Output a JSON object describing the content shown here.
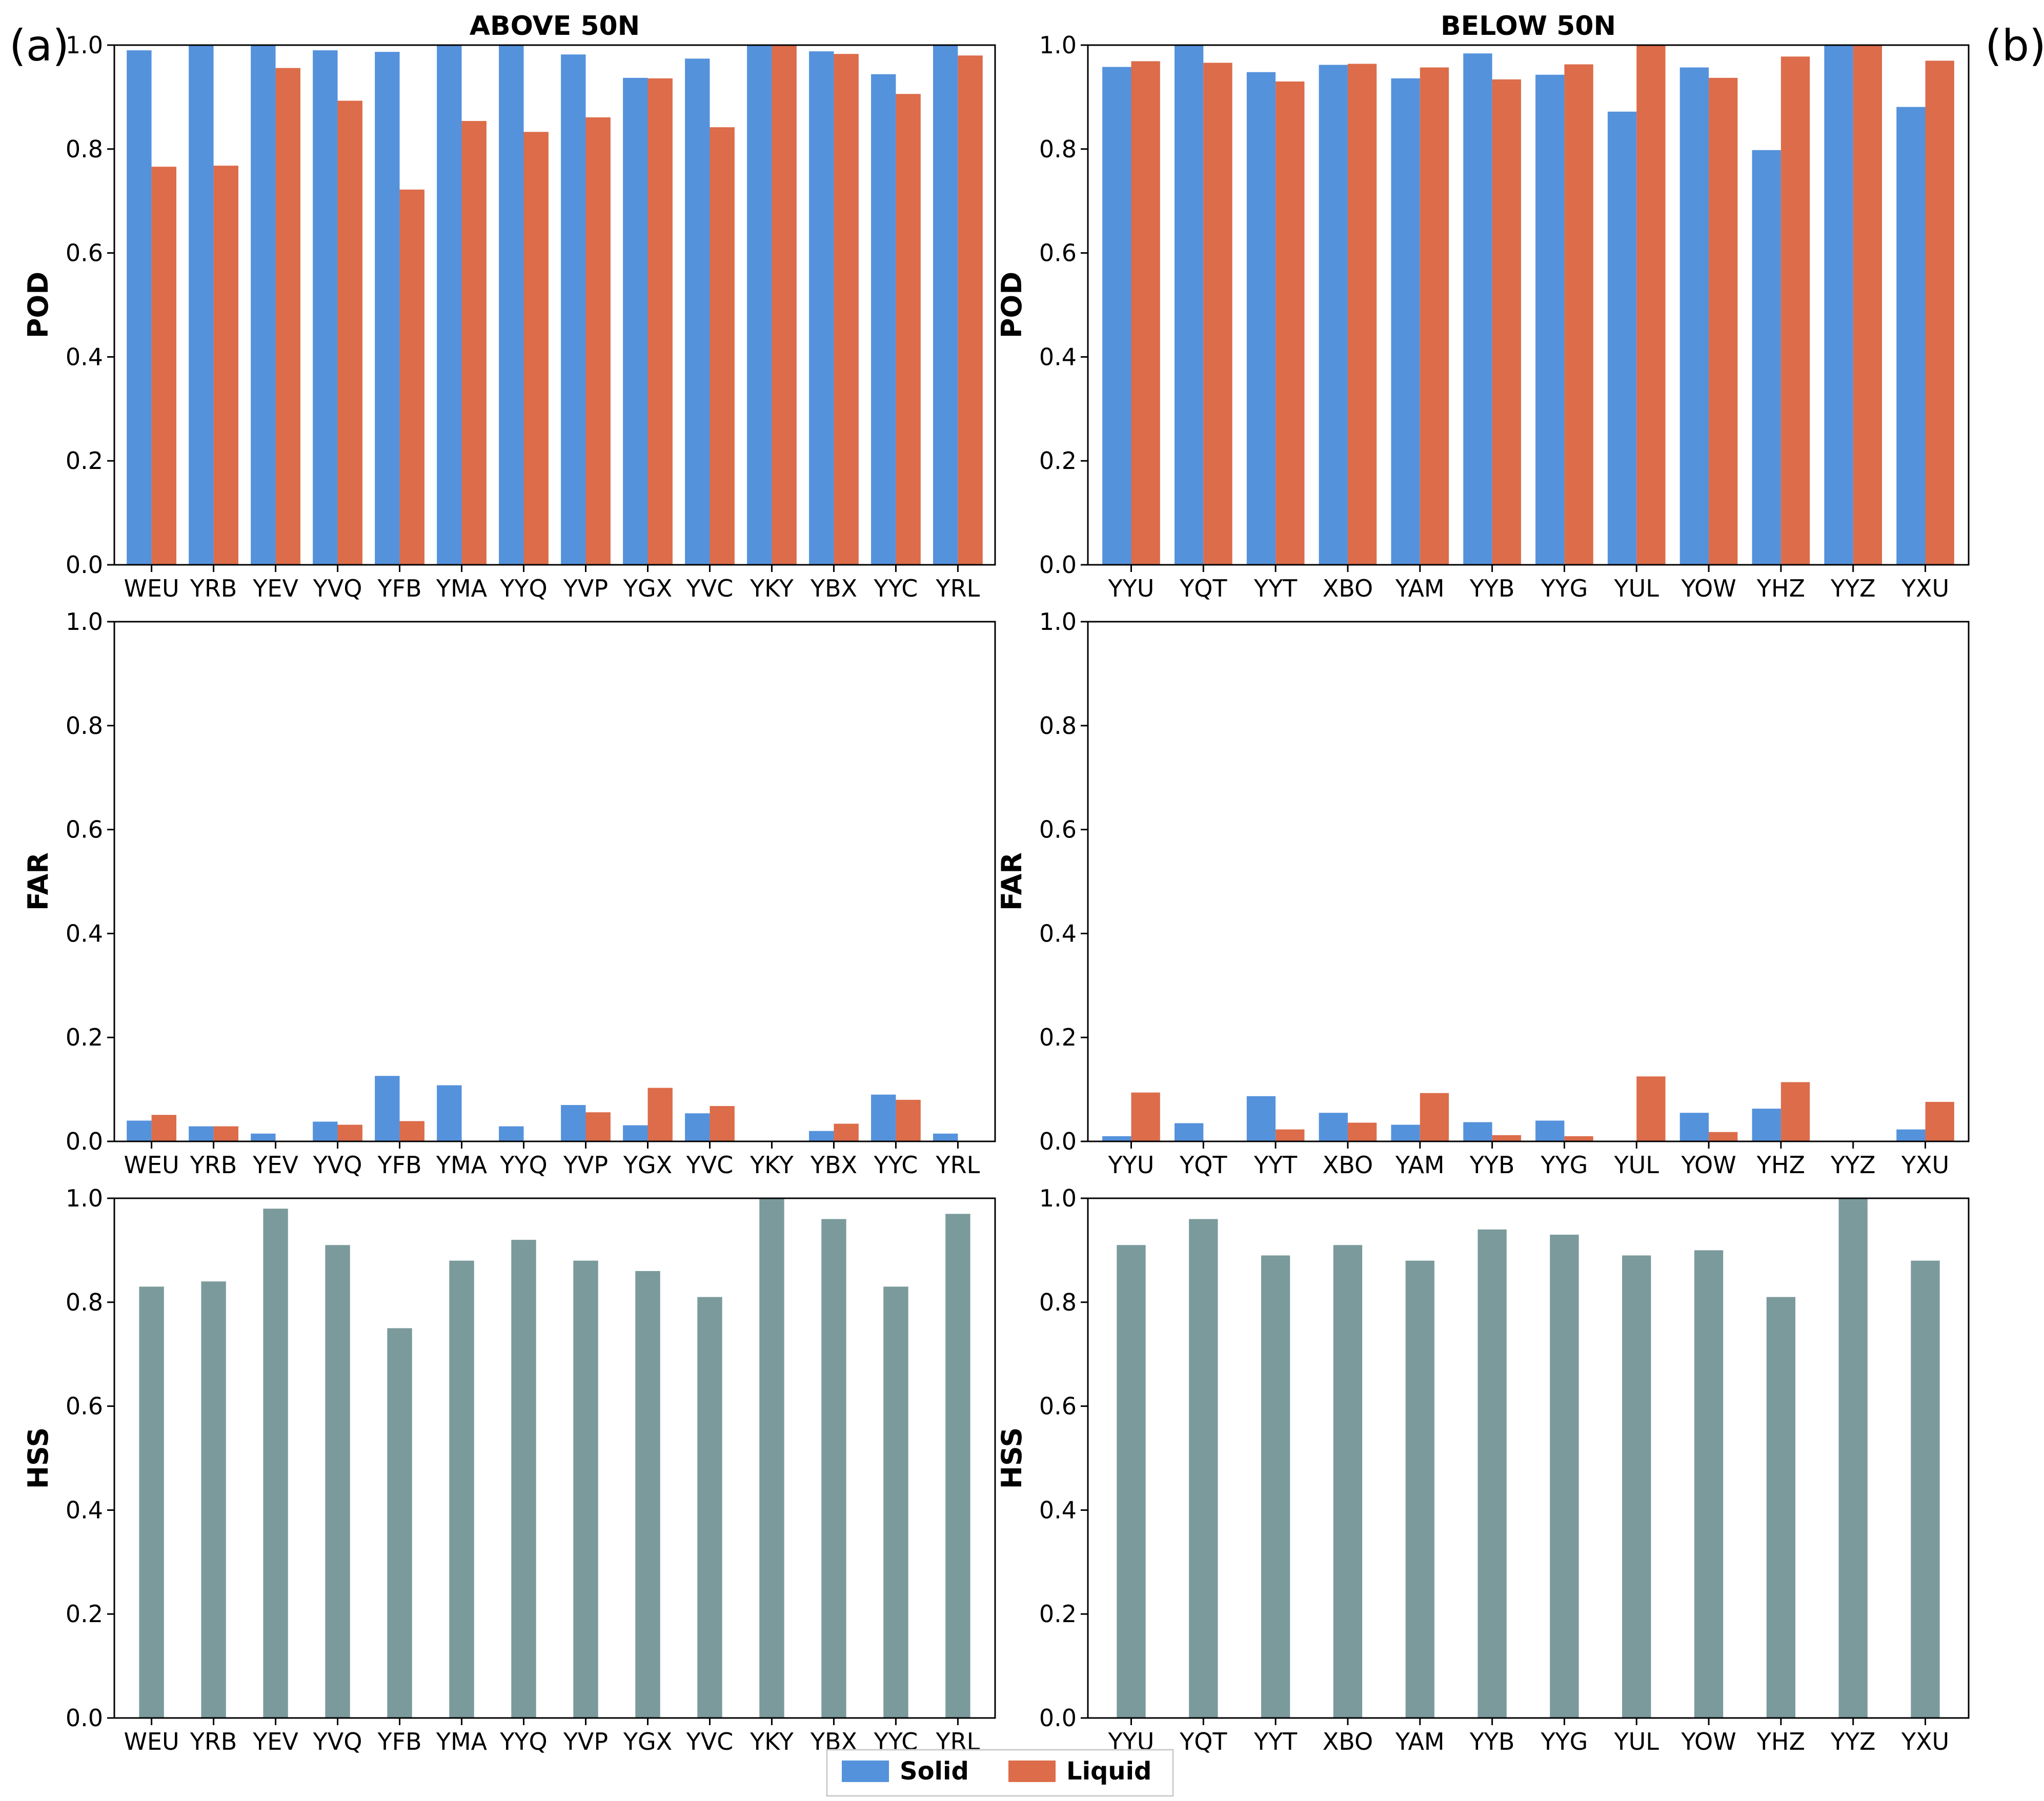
{
  "panel_labels": [
    "(a)",
    "(b)"
  ],
  "colors": {
    "solid": "#5592DC",
    "liquid": "#DC6C4A",
    "hss": "#7B9A9C"
  },
  "legend": {
    "solid_label": "Solid",
    "liquid_label": "Liquid"
  },
  "chart_data": [
    {
      "type": "bar",
      "id": "pod-above",
      "title": "ABOVE 50N",
      "xlabel": "",
      "ylabel": "POD",
      "ylim": [
        0,
        1
      ],
      "yticks": [
        "0.0",
        "0.2",
        "0.4",
        "0.6",
        "0.8",
        "1.0"
      ],
      "categories": [
        "WEU",
        "YRB",
        "YEV",
        "YVQ",
        "YFB",
        "YMA",
        "YYQ",
        "YVP",
        "YGX",
        "YVC",
        "YKY",
        "YBX",
        "YYC",
        "YRL"
      ],
      "series": [
        {
          "name": "Solid",
          "values": [
            0.99,
            1.0,
            1.0,
            0.99,
            0.987,
            1.0,
            1.0,
            0.982,
            0.937,
            0.974,
            1.0,
            0.988,
            0.944,
            1.0
          ]
        },
        {
          "name": "Liquid",
          "values": [
            0.766,
            0.768,
            0.956,
            0.893,
            0.722,
            0.854,
            0.833,
            0.861,
            0.936,
            0.842,
            1.0,
            0.983,
            0.906,
            0.98
          ]
        }
      ]
    },
    {
      "type": "bar",
      "id": "pod-below",
      "title": "BELOW 50N",
      "xlabel": "",
      "ylabel": "POD",
      "ylim": [
        0,
        1
      ],
      "yticks": [
        "0.0",
        "0.2",
        "0.4",
        "0.6",
        "0.8",
        "1.0"
      ],
      "categories": [
        "YYU",
        "YQT",
        "YYT",
        "XBO",
        "YAM",
        "YYB",
        "YYG",
        "YUL",
        "YOW",
        "YHZ",
        "YYZ",
        "YXU"
      ],
      "series": [
        {
          "name": "Solid",
          "values": [
            0.958,
            1.0,
            0.948,
            0.962,
            0.936,
            0.984,
            0.943,
            0.872,
            0.957,
            0.798,
            1.0,
            0.881
          ]
        },
        {
          "name": "Liquid",
          "values": [
            0.969,
            0.966,
            0.93,
            0.964,
            0.957,
            0.934,
            0.963,
            1.0,
            0.937,
            0.978,
            1.0,
            0.97
          ]
        }
      ]
    },
    {
      "type": "bar",
      "id": "far-above",
      "title": "",
      "xlabel": "",
      "ylabel": "FAR",
      "ylim": [
        0,
        1
      ],
      "yticks": [
        "0.0",
        "0.2",
        "0.4",
        "0.6",
        "0.8",
        "1.0"
      ],
      "categories": [
        "WEU",
        "YRB",
        "YEV",
        "YVQ",
        "YFB",
        "YMA",
        "YYQ",
        "YVP",
        "YGX",
        "YVC",
        "YKY",
        "YBX",
        "YYC",
        "YRL"
      ],
      "series": [
        {
          "name": "Solid",
          "values": [
            0.04,
            0.029,
            0.015,
            0.038,
            0.126,
            0.108,
            0.029,
            0.07,
            0.031,
            0.054,
            0.0,
            0.02,
            0.09,
            0.015
          ]
        },
        {
          "name": "Liquid",
          "values": [
            0.051,
            0.029,
            0.0,
            0.032,
            0.039,
            0.0,
            0.0,
            0.056,
            0.103,
            0.068,
            0.0,
            0.034,
            0.08,
            0.0
          ]
        }
      ]
    },
    {
      "type": "bar",
      "id": "far-below",
      "title": "",
      "xlabel": "",
      "ylabel": "FAR",
      "ylim": [
        0,
        1
      ],
      "yticks": [
        "0.0",
        "0.2",
        "0.4",
        "0.6",
        "0.8",
        "1.0"
      ],
      "categories": [
        "YYU",
        "YQT",
        "YYT",
        "XBO",
        "YAM",
        "YYB",
        "YYG",
        "YUL",
        "YOW",
        "YHZ",
        "YYZ",
        "YXU"
      ],
      "series": [
        {
          "name": "Solid",
          "values": [
            0.01,
            0.035,
            0.087,
            0.055,
            0.032,
            0.037,
            0.04,
            0.0,
            0.055,
            0.063,
            0.0,
            0.023
          ]
        },
        {
          "name": "Liquid",
          "values": [
            0.094,
            0.0,
            0.023,
            0.036,
            0.093,
            0.012,
            0.01,
            0.125,
            0.018,
            0.114,
            0.0,
            0.076
          ]
        }
      ]
    },
    {
      "type": "bar",
      "id": "hss-above",
      "title": "",
      "xlabel": "",
      "ylabel": "HSS",
      "ylim": [
        0,
        1
      ],
      "yticks": [
        "0.0",
        "0.2",
        "0.4",
        "0.6",
        "0.8",
        "1.0"
      ],
      "categories": [
        "WEU",
        "YRB",
        "YEV",
        "YVQ",
        "YFB",
        "YMA",
        "YYQ",
        "YVP",
        "YGX",
        "YVC",
        "YKY",
        "YBX",
        "YYC",
        "YRL"
      ],
      "series": [
        {
          "name": "",
          "values": [
            0.83,
            0.84,
            0.98,
            0.91,
            0.75,
            0.88,
            0.92,
            0.88,
            0.86,
            0.81,
            1.0,
            0.96,
            0.83,
            0.97
          ]
        }
      ]
    },
    {
      "type": "bar",
      "id": "hss-below",
      "title": "",
      "xlabel": "",
      "ylabel": "HSS",
      "ylim": [
        0,
        1
      ],
      "yticks": [
        "0.0",
        "0.2",
        "0.4",
        "0.6",
        "0.8",
        "1.0"
      ],
      "categories": [
        "YYU",
        "YQT",
        "YYT",
        "XBO",
        "YAM",
        "YYB",
        "YYG",
        "YUL",
        "YOW",
        "YHZ",
        "YYZ",
        "YXU"
      ],
      "series": [
        {
          "name": "",
          "values": [
            0.91,
            0.96,
            0.89,
            0.91,
            0.88,
            0.94,
            0.93,
            0.89,
            0.9,
            0.81,
            1.0,
            0.88
          ]
        }
      ]
    }
  ]
}
